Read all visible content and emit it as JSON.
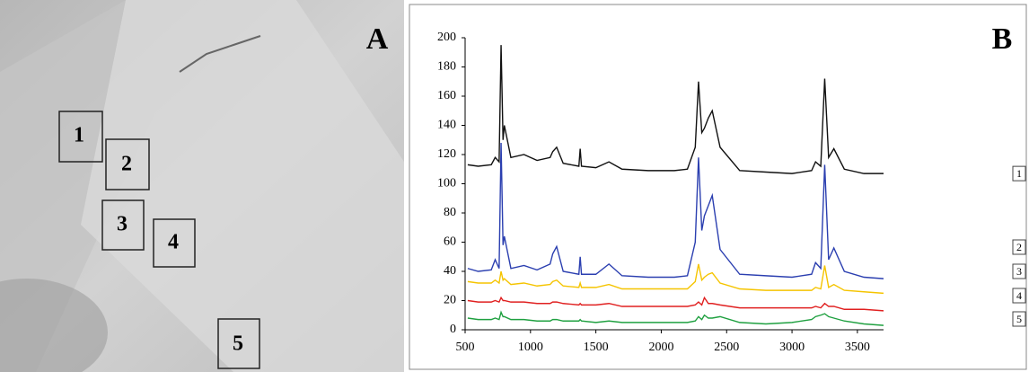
{
  "panel_a": {
    "label": "A",
    "regions": [
      "1",
      "2",
      "3",
      "4",
      "5"
    ]
  },
  "chart_data": {
    "type": "line",
    "label": "B",
    "x": [
      520,
      600,
      700,
      730,
      760,
      775,
      790,
      800,
      850,
      950,
      1050,
      1150,
      1170,
      1200,
      1250,
      1370,
      1380,
      1390,
      1500,
      1600,
      1700,
      1900,
      2100,
      2200,
      2260,
      2285,
      2310,
      2330,
      2360,
      2390,
      2450,
      2600,
      2800,
      3000,
      3150,
      3180,
      3220,
      3250,
      3280,
      3320,
      3400,
      3550,
      3700
    ],
    "series": [
      {
        "name": "1",
        "color": "#111111",
        "values": [
          113,
          112,
          113,
          118,
          115,
          195,
          130,
          140,
          118,
          120,
          116,
          118,
          122,
          125,
          114,
          112,
          124,
          112,
          111,
          115,
          110,
          109,
          109,
          110,
          125,
          170,
          135,
          138,
          145,
          150,
          125,
          109,
          108,
          107,
          109,
          115,
          112,
          172,
          118,
          124,
          110,
          107,
          107
        ]
      },
      {
        "name": "2",
        "color": "#2b3fb0",
        "values": [
          42,
          40,
          41,
          48,
          42,
          128,
          58,
          64,
          42,
          44,
          41,
          45,
          52,
          57,
          40,
          38,
          50,
          38,
          38,
          45,
          37,
          36,
          36,
          37,
          60,
          118,
          68,
          78,
          85,
          92,
          55,
          38,
          37,
          36,
          38,
          46,
          42,
          113,
          48,
          56,
          40,
          36,
          35
        ]
      },
      {
        "name": "3",
        "color": "#f5c400",
        "values": [
          33,
          32,
          32,
          34,
          32,
          40,
          34,
          35,
          31,
          32,
          30,
          31,
          33,
          34,
          30,
          29,
          32,
          29,
          29,
          31,
          28,
          28,
          28,
          28,
          33,
          45,
          34,
          36,
          38,
          39,
          32,
          28,
          27,
          27,
          27,
          29,
          28,
          44,
          29,
          31,
          27,
          26,
          25
        ]
      },
      {
        "name": "4",
        "color": "#e02020",
        "values": [
          20,
          19,
          19,
          20,
          19,
          22,
          20,
          20,
          19,
          19,
          18,
          18,
          19,
          19,
          18,
          17,
          18,
          17,
          17,
          18,
          16,
          16,
          16,
          16,
          17,
          19,
          17,
          22,
          18,
          18,
          17,
          15,
          15,
          15,
          15,
          16,
          15,
          18,
          16,
          16,
          14,
          14,
          13
        ]
      },
      {
        "name": "5",
        "color": "#1fa040",
        "values": [
          8,
          7,
          7,
          8,
          7,
          12,
          9,
          9,
          7,
          7,
          6,
          6,
          7,
          7,
          6,
          6,
          7,
          6,
          5,
          6,
          5,
          5,
          5,
          5,
          6,
          9,
          7,
          10,
          8,
          8,
          9,
          5,
          4,
          5,
          7,
          9,
          10,
          11,
          9,
          8,
          6,
          4,
          3
        ]
      }
    ],
    "xlim": [
      500,
      3700
    ],
    "xticks": [
      500,
      1000,
      1500,
      2000,
      2500,
      3000,
      3500
    ],
    "ylim": [
      0,
      200
    ],
    "yticks": [
      0,
      20,
      40,
      60,
      80,
      100,
      120,
      140,
      160,
      180,
      200
    ],
    "grid": false
  }
}
